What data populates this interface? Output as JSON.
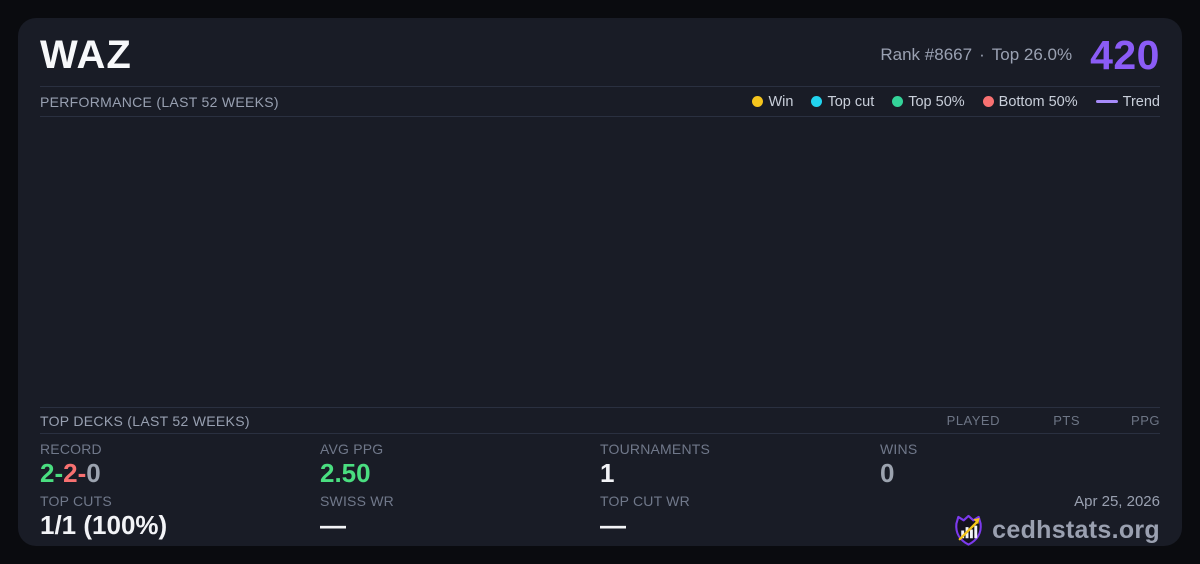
{
  "header": {
    "title": "WAZ",
    "rank": "Rank #8667",
    "separator": "·",
    "percentile": "Top 26.0%",
    "score": "420"
  },
  "colors": {
    "score": "#8b5cf6",
    "positive": "#4ade80",
    "negative": "#f87171",
    "neutral": "#9ca3af",
    "trend": "#a78bfa",
    "card_background": "#191c26",
    "page_background": "#0a0b0f"
  },
  "performance": {
    "section_title": "PERFORMANCE (LAST 52 WEEKS)",
    "legend": [
      {
        "label": "Win",
        "color": "#f5c51d",
        "marker": "dot"
      },
      {
        "label": "Top cut",
        "color": "#22d3ee",
        "marker": "dot"
      },
      {
        "label": "Top 50%",
        "color": "#34d399",
        "marker": "dot"
      },
      {
        "label": "Bottom 50%",
        "color": "#f87171",
        "marker": "dot"
      },
      {
        "label": "Trend",
        "color": "#a78bfa",
        "marker": "line"
      }
    ],
    "data_points": []
  },
  "top_decks": {
    "section_title": "TOP DECKS (LAST 52 WEEKS)",
    "columns": [
      "PLAYED",
      "PTS",
      "PPG"
    ],
    "rows": []
  },
  "stats": {
    "record": {
      "label": "RECORD",
      "parts": [
        {
          "text": "2-",
          "color": "#4ade80"
        },
        {
          "text": "2-",
          "color": "#f87171"
        },
        {
          "text": "0",
          "color": "#9ca3af"
        }
      ]
    },
    "avg_ppg": {
      "label": "AVG PPG",
      "value": "2.50",
      "color": "#4ade80"
    },
    "tournaments": {
      "label": "TOURNAMENTS",
      "value": "1"
    },
    "wins": {
      "label": "WINS",
      "value": "0",
      "color": "#9ca3af"
    },
    "top_cuts": {
      "label": "TOP CUTS",
      "value": "1/1 (100%)"
    },
    "swiss_wr": {
      "label": "SWISS WR",
      "value": "—"
    },
    "top_cut_wr": {
      "label": "TOP CUT WR",
      "value": "—"
    }
  },
  "footer": {
    "date": "Apr 25, 2026",
    "brand": "cedhstats.org"
  }
}
